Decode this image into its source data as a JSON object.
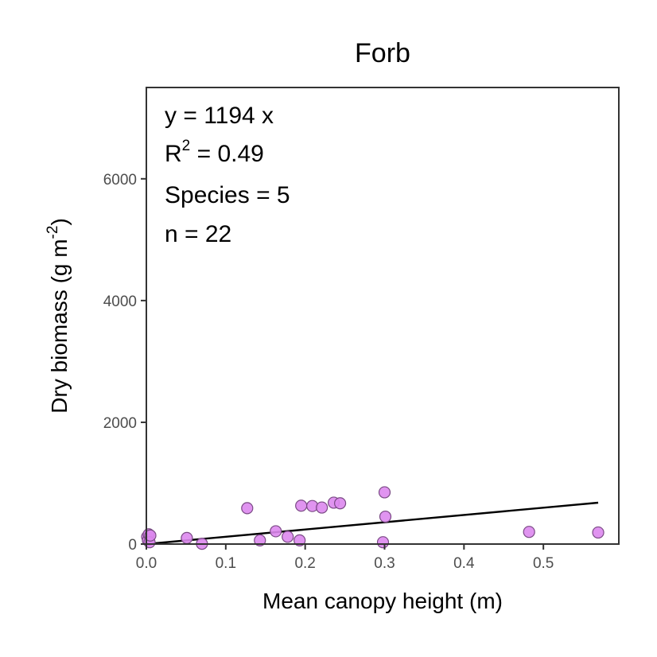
{
  "chart_data": {
    "type": "scatter",
    "title": "Forb",
    "xlabel": "Mean canopy height (m)",
    "ylabel": {
      "text": "Dry biomass (g m",
      "superscript": "-2",
      "suffix": ")"
    },
    "xlim": [
      0,
      0.595
    ],
    "ylim": [
      0,
      7500
    ],
    "x_ticks": [
      {
        "value": 0.0,
        "label": "0.0"
      },
      {
        "value": 0.1,
        "label": "0.1"
      },
      {
        "value": 0.2,
        "label": "0.2"
      },
      {
        "value": 0.3,
        "label": "0.3"
      },
      {
        "value": 0.4,
        "label": "0.4"
      },
      {
        "value": 0.5,
        "label": "0.5"
      }
    ],
    "y_ticks": [
      {
        "value": 0,
        "label": "0"
      },
      {
        "value": 2000,
        "label": "2000"
      },
      {
        "value": 4000,
        "label": "4000"
      },
      {
        "value": 6000,
        "label": "6000"
      }
    ],
    "grid": false,
    "legend": "none",
    "point_fill": "#dd88ee",
    "point_stroke": "#7a4a85",
    "line_color": "#000000",
    "points": [
      {
        "x": 0.001,
        "y": 120
      },
      {
        "x": 0.002,
        "y": 60
      },
      {
        "x": 0.003,
        "y": 160
      },
      {
        "x": 0.004,
        "y": 30
      },
      {
        "x": 0.005,
        "y": 140
      },
      {
        "x": 0.051,
        "y": 100
      },
      {
        "x": 0.07,
        "y": 5
      },
      {
        "x": 0.127,
        "y": 590
      },
      {
        "x": 0.143,
        "y": 60
      },
      {
        "x": 0.163,
        "y": 210
      },
      {
        "x": 0.178,
        "y": 120
      },
      {
        "x": 0.193,
        "y": 60
      },
      {
        "x": 0.195,
        "y": 630
      },
      {
        "x": 0.209,
        "y": 625
      },
      {
        "x": 0.221,
        "y": 600
      },
      {
        "x": 0.236,
        "y": 680
      },
      {
        "x": 0.244,
        "y": 670
      },
      {
        "x": 0.298,
        "y": 30
      },
      {
        "x": 0.3,
        "y": 850
      },
      {
        "x": 0.301,
        "y": 450
      },
      {
        "x": 0.482,
        "y": 200
      },
      {
        "x": 0.569,
        "y": 190
      }
    ],
    "fit_line": {
      "slope": 1194,
      "intercept": 0,
      "x_range": [
        0,
        0.569
      ]
    },
    "annotations": {
      "equation": "y = 1194 x",
      "r2": {
        "base": "R",
        "sup": "2",
        "rest": " = 0.49"
      },
      "species": "Species = 5",
      "n": "n = 22"
    }
  }
}
